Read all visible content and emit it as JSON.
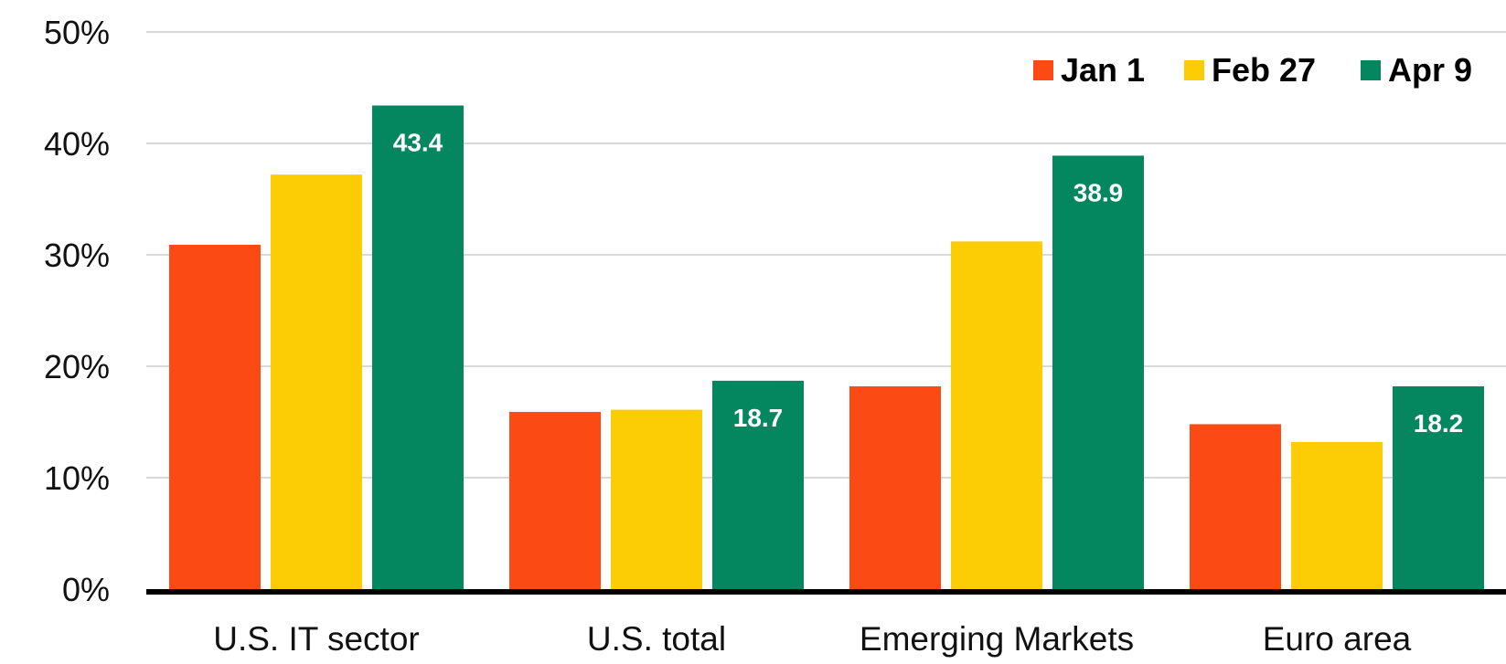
{
  "chart_data": {
    "type": "bar",
    "title": "",
    "xlabel": "",
    "ylabel": "",
    "ylim": [
      0,
      50
    ],
    "yticks": [
      0,
      10,
      20,
      30,
      40,
      50
    ],
    "ytick_labels": [
      "0%",
      "10%",
      "20%",
      "30%",
      "40%",
      "50%"
    ],
    "grid": true,
    "legend_position": "top-right",
    "categories": [
      "U.S. IT sector",
      "U.S. total",
      "Emerging Markets",
      "Euro area"
    ],
    "series": [
      {
        "name": "Jan 1",
        "color": "#FC4A14",
        "values": [
          30.9,
          15.9,
          18.2,
          14.8
        ]
      },
      {
        "name": "Feb 27",
        "color": "#FCCD05",
        "values": [
          37.2,
          16.1,
          31.2,
          13.2
        ]
      },
      {
        "name": "Apr 9",
        "color": "#04875F",
        "values": [
          43.4,
          18.7,
          38.9,
          18.2
        ]
      }
    ],
    "data_labels": {
      "series": "Apr 9",
      "labels": [
        "43.4",
        "18.7",
        "38.9",
        "18.2"
      ]
    }
  }
}
